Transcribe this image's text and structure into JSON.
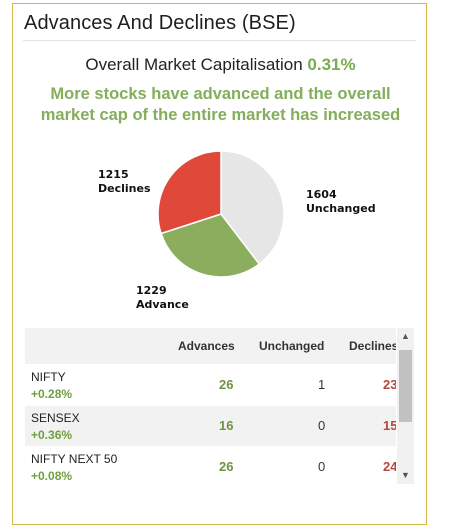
{
  "widget": {
    "title": "Advances And Declines (BSE)",
    "market_cap_label": "Overall Market Capitalisation",
    "market_cap_pct": "0.31%",
    "summary": "More stocks have advanced and the overall market cap of the entire market has increased"
  },
  "chart_data": {
    "type": "pie",
    "slices": [
      {
        "name": "Unchanged",
        "value": 1604,
        "color": "#e6e6e6"
      },
      {
        "name": "Advance",
        "value": 1229,
        "color": "#8aae5e"
      },
      {
        "name": "Declines",
        "value": 1215,
        "color": "#e0483a"
      }
    ],
    "labels": {
      "declines_value": "1215",
      "declines_name": "Declines",
      "unchanged_value": "1604",
      "unchanged_name": "Unchanged",
      "advance_value": "1229",
      "advance_name": "Advance"
    }
  },
  "table": {
    "headers": {
      "advances": "Advances",
      "unchanged": "Unchanged",
      "declines": "Declines"
    },
    "rows": [
      {
        "name": "NIFTY",
        "change": "+0.28%",
        "advances": "26",
        "unchanged": "1",
        "declines": "23"
      },
      {
        "name": "SENSEX",
        "change": "+0.36%",
        "advances": "16",
        "unchanged": "0",
        "declines": "15"
      },
      {
        "name": "NIFTY NEXT 50",
        "change": "+0.08%",
        "advances": "26",
        "unchanged": "0",
        "declines": "24"
      }
    ]
  },
  "scrollbar": {
    "up_icon": "▲",
    "down_icon": "▼"
  }
}
